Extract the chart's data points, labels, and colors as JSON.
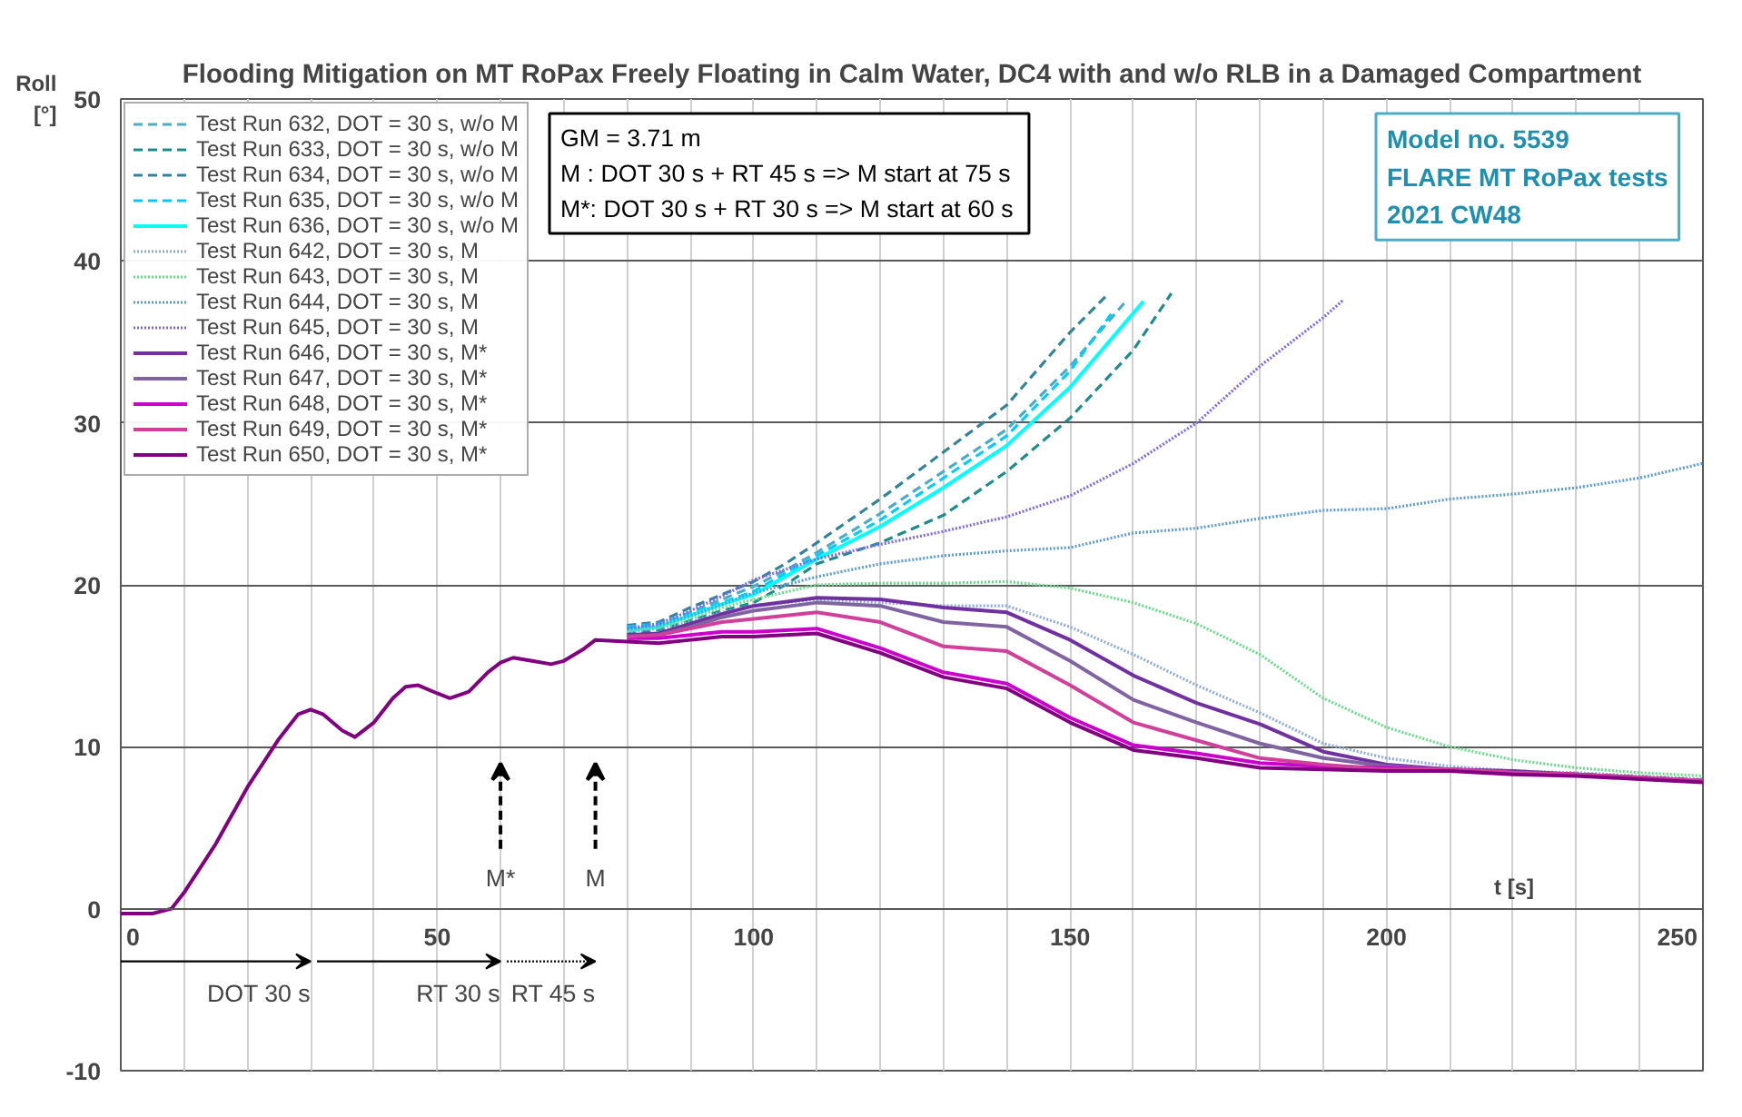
{
  "chart_data": {
    "type": "line",
    "title": "Flooding Mitigation on MT RoPax Freely Floating in Calm Water, DC4 with and w/o RLB in a Damaged Compartment",
    "xlabel": "t [s]",
    "ylabel": "Roll [°]",
    "xlim": [
      0,
      250
    ],
    "ylim": [
      -10,
      50
    ],
    "xticks": [
      0,
      {
        "value": 10,
        "label": null
      },
      {
        "value": 20,
        "label": null
      },
      {
        "value": 30,
        "label": null
      },
      {
        "value": 40,
        "label": null
      },
      50,
      {
        "value": 60,
        "label": null
      },
      {
        "value": 70,
        "label": null
      },
      {
        "value": 80,
        "label": null
      },
      {
        "value": 90,
        "label": null
      },
      100,
      {
        "value": 110,
        "label": null
      },
      {
        "value": 120,
        "label": null
      },
      {
        "value": 130,
        "label": null
      },
      {
        "value": 140,
        "label": null
      },
      150,
      {
        "value": 160,
        "label": null
      },
      {
        "value": 170,
        "label": null
      },
      {
        "value": 180,
        "label": null
      },
      {
        "value": 190,
        "label": null
      },
      200,
      {
        "value": 210,
        "label": null
      },
      {
        "value": 220,
        "label": null
      },
      {
        "value": 230,
        "label": null
      },
      {
        "value": 240,
        "label": null
      },
      250
    ],
    "yticks": [
      -10,
      0,
      10,
      20,
      30,
      40,
      50
    ],
    "grid": true,
    "legend": "top left",
    "marker": "none",
    "annotations": [
      "GM = 3.71 m\nM  : DOT 30 s + RT 45 s => M start at 75 s\nM*: DOT 30 s + RT 30 s => M start at 60 s",
      "Model no. 5539\nFLARE MT RoPax tests\n2021 CW48",
      "M*",
      "M",
      "DOT 30 s",
      "RT 30 s",
      "RT 45 s"
    ],
    "series": [
      {
        "name": "Test Run 632, DOT = 30 s, w/o M",
        "color": "#4bacc6",
        "line_style": "dashed",
        "x": [
          80,
          85,
          90,
          95,
          100,
          105,
          110,
          120,
          130,
          140,
          150,
          159
        ],
        "values": [
          17.3,
          17.5,
          18.3,
          19.1,
          19.9,
          20.9,
          22.0,
          24.4,
          27.0,
          29.6,
          33.5,
          37.6
        ]
      },
      {
        "name": "Test Run 633, DOT = 30 s, w/o M",
        "color": "#1f8c8c",
        "line_style": "dashed",
        "x": [
          80,
          85,
          90,
          95,
          100,
          105,
          110,
          120,
          130,
          140,
          150,
          160,
          166
        ],
        "values": [
          17.0,
          17.2,
          17.8,
          18.4,
          18.9,
          20.0,
          21.3,
          22.6,
          24.3,
          27.0,
          30.3,
          34.5,
          38.0
        ]
      },
      {
        "name": "Test Run 634, DOT = 30 s, w/o M",
        "color": "#31849b",
        "line_style": "dashed",
        "x": [
          80,
          85,
          90,
          95,
          100,
          105,
          110,
          120,
          130,
          140,
          150,
          155.6
        ],
        "values": [
          17.5,
          17.7,
          18.6,
          19.4,
          20.2,
          21.3,
          22.6,
          25.3,
          28.2,
          31.1,
          35.6,
          37.8
        ]
      },
      {
        "name": "Test Run 635, DOT = 30 s, w/o M",
        "color": "#00ccff",
        "line_style": "dashed",
        "x": [
          80,
          85,
          90,
          95,
          100,
          105,
          110,
          120,
          130,
          140,
          150,
          157
        ],
        "values": [
          17.4,
          17.6,
          18.2,
          18.9,
          19.6,
          20.7,
          21.8,
          24.0,
          26.6,
          29.2,
          33.2,
          37.0
        ]
      },
      {
        "name": "Test Run 636, DOT = 30 s, w/o M",
        "color": "#00ffff",
        "line_style": "solid",
        "x": [
          80,
          85,
          90,
          95,
          100,
          105,
          110,
          120,
          130,
          140,
          150,
          161.6
        ],
        "values": [
          17.2,
          17.4,
          18.1,
          18.8,
          19.4,
          20.5,
          21.6,
          23.6,
          26.0,
          28.6,
          32.2,
          37.5
        ]
      },
      {
        "name": "Test Run 642, DOT = 30 s, M",
        "color": "#8eaadb",
        "line_style": "dotted",
        "x": [
          80,
          85,
          90,
          95,
          100,
          110,
          120,
          130,
          140,
          150,
          160,
          170,
          180,
          190,
          200,
          210,
          220,
          230,
          240,
          250
        ],
        "values": [
          17.1,
          17.3,
          17.7,
          18.3,
          18.7,
          19.1,
          18.9,
          18.7,
          18.7,
          17.4,
          15.7,
          13.8,
          12.1,
          10.2,
          9.3,
          8.8,
          8.5,
          8.4,
          8.2,
          8.0
        ]
      },
      {
        "name": "Test Run 643, DOT = 30 s, M",
        "color": "#66dd88",
        "line_style": "dotted",
        "x": [
          80,
          85,
          90,
          95,
          100,
          110,
          120,
          130,
          140,
          150,
          160,
          170,
          180,
          190,
          200,
          210,
          220,
          230,
          240,
          250
        ],
        "values": [
          17.2,
          17.4,
          17.9,
          18.6,
          19.1,
          20.0,
          20.1,
          20.1,
          20.2,
          19.8,
          18.9,
          17.6,
          15.7,
          13.0,
          11.2,
          10.0,
          9.2,
          8.7,
          8.4,
          8.2
        ]
      },
      {
        "name": "Test Run 644, DOT = 30 s, M",
        "color": "#5b9bd5",
        "line_style": "dotted",
        "x": [
          80,
          85,
          90,
          95,
          100,
          110,
          120,
          130,
          140,
          150,
          160,
          170,
          180,
          190,
          200,
          210,
          220,
          230,
          240,
          250
        ],
        "values": [
          17.3,
          17.5,
          18.1,
          18.8,
          19.5,
          20.5,
          21.3,
          21.8,
          22.1,
          22.3,
          23.2,
          23.5,
          24.1,
          24.6,
          24.7,
          25.3,
          25.6,
          26.0,
          26.6,
          27.5
        ]
      },
      {
        "name": "Test Run 645, DOT = 30 s, M",
        "color": "#7b68ee",
        "line_style": "dotted",
        "x": [
          80,
          85,
          90,
          95,
          100,
          110,
          120,
          130,
          140,
          150,
          160,
          170,
          180,
          190,
          193.2
        ],
        "values": [
          17.3,
          17.6,
          18.4,
          19.3,
          20.3,
          21.6,
          22.5,
          23.3,
          24.2,
          25.5,
          27.5,
          30.0,
          33.5,
          36.5,
          37.6
        ]
      },
      {
        "name": "Test Run 646, DOT = 30 s, M*",
        "color": "#7030a0",
        "line_style": "solid",
        "x": [
          80,
          85,
          90,
          95,
          100,
          110,
          120,
          130,
          140,
          150,
          160,
          170,
          180,
          190,
          200,
          210,
          220,
          230,
          240,
          250
        ],
        "values": [
          16.9,
          17.0,
          17.6,
          18.2,
          18.7,
          19.2,
          19.1,
          18.6,
          18.3,
          16.6,
          14.4,
          12.7,
          11.4,
          9.7,
          8.9,
          8.6,
          8.5,
          8.3,
          8.1,
          7.9
        ]
      },
      {
        "name": "Test Run 647, DOT = 30 s, M*",
        "color": "#8064a2",
        "line_style": "solid",
        "x": [
          80,
          85,
          90,
          95,
          100,
          110,
          120,
          130,
          140,
          150,
          160,
          170,
          180,
          190,
          200,
          210,
          220,
          230,
          240,
          250
        ],
        "values": [
          16.8,
          16.9,
          17.4,
          18.0,
          18.4,
          18.9,
          18.7,
          17.7,
          17.4,
          15.3,
          12.9,
          11.5,
          10.2,
          9.3,
          8.8,
          8.6,
          8.4,
          8.3,
          8.1,
          7.9
        ]
      },
      {
        "name": "Test Run 648, DOT = 30 s, M*",
        "color": "#cc00cc",
        "line_style": "solid",
        "x": [
          80,
          85,
          90,
          95,
          100,
          110,
          120,
          130,
          140,
          150,
          160,
          170,
          180,
          190,
          200,
          210,
          220,
          230,
          240,
          250
        ],
        "values": [
          16.7,
          16.7,
          16.9,
          17.1,
          17.1,
          17.3,
          16.1,
          14.6,
          13.9,
          11.8,
          10.1,
          9.6,
          9.0,
          8.8,
          8.7,
          8.6,
          8.4,
          8.3,
          8.1,
          7.9
        ]
      },
      {
        "name": "Test Run 649, DOT = 30 s, M*",
        "color": "#d0409a",
        "line_style": "solid",
        "x": [
          80,
          85,
          90,
          95,
          100,
          110,
          120,
          130,
          140,
          150,
          160,
          170,
          180,
          190,
          200,
          210,
          220,
          230,
          240,
          250
        ],
        "values": [
          16.8,
          16.9,
          17.3,
          17.7,
          17.9,
          18.3,
          17.7,
          16.2,
          15.9,
          13.8,
          11.5,
          10.4,
          9.3,
          8.9,
          8.6,
          8.6,
          8.4,
          8.3,
          8.1,
          7.9
        ]
      },
      {
        "name": "Test Run 650, DOT = 30 s, M*",
        "color": "#800080",
        "line_style": "solid",
        "x": [
          0,
          5,
          8,
          10,
          15,
          20,
          25,
          28,
          30,
          32,
          35,
          37,
          40,
          43,
          45,
          47,
          50,
          52,
          55,
          58,
          60,
          62,
          65,
          68,
          70,
          73,
          75,
          80,
          85,
          90,
          95,
          100,
          110,
          120,
          130,
          140,
          150,
          160,
          170,
          180,
          190,
          200,
          210,
          220,
          230,
          240,
          250
        ],
        "values": [
          -0.3,
          -0.3,
          0,
          1,
          4,
          7.5,
          10.5,
          12,
          12.3,
          12,
          11,
          10.6,
          11.5,
          13,
          13.7,
          13.8,
          13.3,
          13,
          13.4,
          14.6,
          15.2,
          15.5,
          15.3,
          15.1,
          15.3,
          16,
          16.6,
          16.5,
          16.4,
          16.6,
          16.8,
          16.8,
          17.0,
          15.8,
          14.3,
          13.6,
          11.5,
          9.8,
          9.3,
          8.7,
          8.6,
          8.5,
          8.5,
          8.3,
          8.2,
          8.0,
          7.8
        ]
      }
    ]
  }
}
